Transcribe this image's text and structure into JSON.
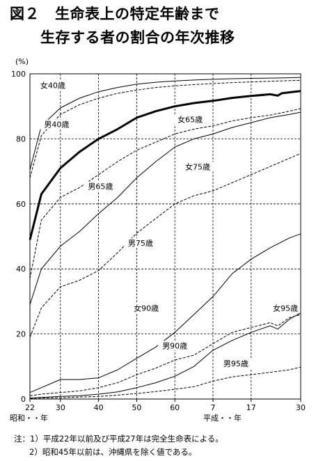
{
  "title": {
    "fig_label": "図２",
    "line1": "生命表上の特定年齢まで",
    "line2": "生存する者の割合の年次推移"
  },
  "chart_data": {
    "type": "line",
    "y_unit": "(%)",
    "ylim": [
      0,
      100
    ],
    "y_ticks": [
      "0",
      "20",
      "40",
      "60",
      "80",
      "100"
    ],
    "x_ticks": [
      "22",
      "30",
      "40",
      "50",
      "60",
      "7",
      "17",
      "30"
    ],
    "x_era_left": "昭和・・年",
    "x_era_right": "平成・・年",
    "x_positions": [
      1947,
      1955,
      1965,
      1975,
      1985,
      1995,
      2005,
      2018
    ],
    "grid": true,
    "series": [
      {
        "name": "女40歳",
        "style": "solid",
        "width": 1,
        "x": [
          1947,
          1950,
          1955,
          1960,
          1965,
          1970,
          1975,
          1980,
          1985,
          1990,
          1995,
          2000,
          2005,
          2010,
          2015,
          2018
        ],
        "y": [
          70.5,
          84,
          89.5,
          92.5,
          94.5,
          95.8,
          96.8,
          97.4,
          97.8,
          98.1,
          98.3,
          98.5,
          98.6,
          98.7,
          98.8,
          98.9
        ]
      },
      {
        "name": "男40歳",
        "style": "dashed",
        "width": 1,
        "x": [
          1947,
          1950,
          1955,
          1960,
          1965,
          1970,
          1975,
          1980,
          1985,
          1990,
          1995,
          2000,
          2005,
          2010,
          2015,
          2018
        ],
        "y": [
          68,
          81,
          87.5,
          90.5,
          92.5,
          94,
          95,
          95.8,
          96.3,
          96.7,
          97,
          97.3,
          97.5,
          97.7,
          97.9,
          98
        ]
      },
      {
        "name": "女65歳",
        "style": "solid",
        "width": 3,
        "x": [
          1947,
          1950,
          1955,
          1960,
          1965,
          1970,
          1975,
          1980,
          1985,
          1990,
          1995,
          2000,
          2005,
          2010,
          2012,
          2013,
          2015,
          2018
        ],
        "y": [
          49,
          63,
          71,
          76,
          80,
          83,
          86.5,
          88.5,
          90,
          91,
          91.7,
          92.6,
          93.2,
          93.7,
          93.3,
          94,
          94.3,
          94.7
        ]
      },
      {
        "name": "男65歳",
        "style": "dashed",
        "width": 1,
        "x": [
          1947,
          1950,
          1955,
          1960,
          1965,
          1970,
          1975,
          1980,
          1985,
          1990,
          1995,
          2000,
          2005,
          2010,
          2015,
          2018
        ],
        "y": [
          37,
          55,
          62,
          65,
          69,
          73,
          76.5,
          79,
          81.5,
          83,
          84,
          85.5,
          86.5,
          87.3,
          88.5,
          89.3
        ]
      },
      {
        "name": "女75歳",
        "style": "solid",
        "width": 1,
        "x": [
          1947,
          1950,
          1955,
          1960,
          1965,
          1970,
          1975,
          1980,
          1985,
          1990,
          1995,
          2000,
          2005,
          2010,
          2015,
          2018
        ],
        "y": [
          29,
          40,
          47,
          51.5,
          57,
          62,
          68,
          73,
          77.5,
          80,
          81.5,
          83.5,
          85,
          86.5,
          87.5,
          88.2
        ]
      },
      {
        "name": "男75歳",
        "style": "dashed",
        "width": 1,
        "x": [
          1947,
          1950,
          1955,
          1960,
          1965,
          1970,
          1975,
          1980,
          1985,
          1990,
          1995,
          2000,
          2005,
          2010,
          2015,
          2018
        ],
        "y": [
          19,
          28,
          34.5,
          36.5,
          39.5,
          45,
          51,
          55.5,
          60,
          62.5,
          64,
          66.5,
          69,
          71.5,
          74,
          75.5
        ]
      },
      {
        "name": "女90歳",
        "style": "solid",
        "width": 1,
        "x": [
          1947,
          1950,
          1955,
          1960,
          1965,
          1970,
          1975,
          1980,
          1985,
          1990,
          1995,
          2000,
          2005,
          2010,
          2015,
          2018
        ],
        "y": [
          2,
          3.5,
          6,
          6,
          6.5,
          9,
          12.5,
          16,
          20.5,
          26,
          31.5,
          38.5,
          43,
          46.5,
          49.5,
          50.8
        ]
      },
      {
        "name": "男90歳",
        "style": "dashed",
        "width": 1,
        "x": [
          1947,
          1950,
          1955,
          1960,
          1965,
          1970,
          1975,
          1980,
          1985,
          1990,
          1995,
          2000,
          2005,
          2010,
          2012,
          2015,
          2018
        ],
        "y": [
          1,
          1.5,
          2,
          2.5,
          3.5,
          5,
          7.5,
          9.5,
          12,
          13.5,
          17,
          20.5,
          22,
          23.5,
          22.5,
          25,
          26
        ]
      },
      {
        "name": "女95歳",
        "style": "solid",
        "width": 1,
        "x": [
          1947,
          1950,
          1955,
          1960,
          1965,
          1970,
          1975,
          1980,
          1985,
          1990,
          1995,
          2000,
          2005,
          2010,
          2012,
          2015,
          2018
        ],
        "y": [
          0.3,
          0.5,
          0.8,
          1,
          1.5,
          2.2,
          3.5,
          5,
          7,
          10,
          15,
          18,
          20.5,
          22.5,
          21.5,
          24.5,
          26.5
        ]
      },
      {
        "name": "男95歳",
        "style": "dashed",
        "width": 1,
        "x": [
          1947,
          1950,
          1955,
          1960,
          1965,
          1970,
          1975,
          1980,
          1985,
          1990,
          1995,
          2000,
          2005,
          2010,
          2015,
          2018
        ],
        "y": [
          0.2,
          0.3,
          0.4,
          0.6,
          0.8,
          1.2,
          1.7,
          2.3,
          3,
          3.8,
          5.5,
          6.8,
          7.5,
          8.2,
          9,
          9.8
        ]
      }
    ],
    "labels": [
      {
        "text": "女40歳",
        "x": 1953,
        "y": 96
      },
      {
        "text": "男40歳",
        "x": 1954,
        "y": 84
      },
      {
        "text": "女65歳",
        "x": 1989,
        "y": 85.5
      },
      {
        "text": "男65歳",
        "x": 1965.5,
        "y": 65
      },
      {
        "text": "女75歳",
        "x": 1991,
        "y": 71
      },
      {
        "text": "男75歳",
        "x": 1976,
        "y": 47.5
      },
      {
        "text": "女90歳",
        "x": 1977.5,
        "y": 27.5
      },
      {
        "text": "男90歳",
        "x": 1985,
        "y": 16
      },
      {
        "text": "女95歳",
        "x": 2014,
        "y": 27.5
      },
      {
        "text": "男95歳",
        "x": 2001,
        "y": 10.5
      }
    ]
  },
  "notes": {
    "line1": "注：1）平成22年以前及び平成27年は完全生命表による。",
    "line2": "2）昭和45年以前は、沖縄県を除く値である。"
  }
}
